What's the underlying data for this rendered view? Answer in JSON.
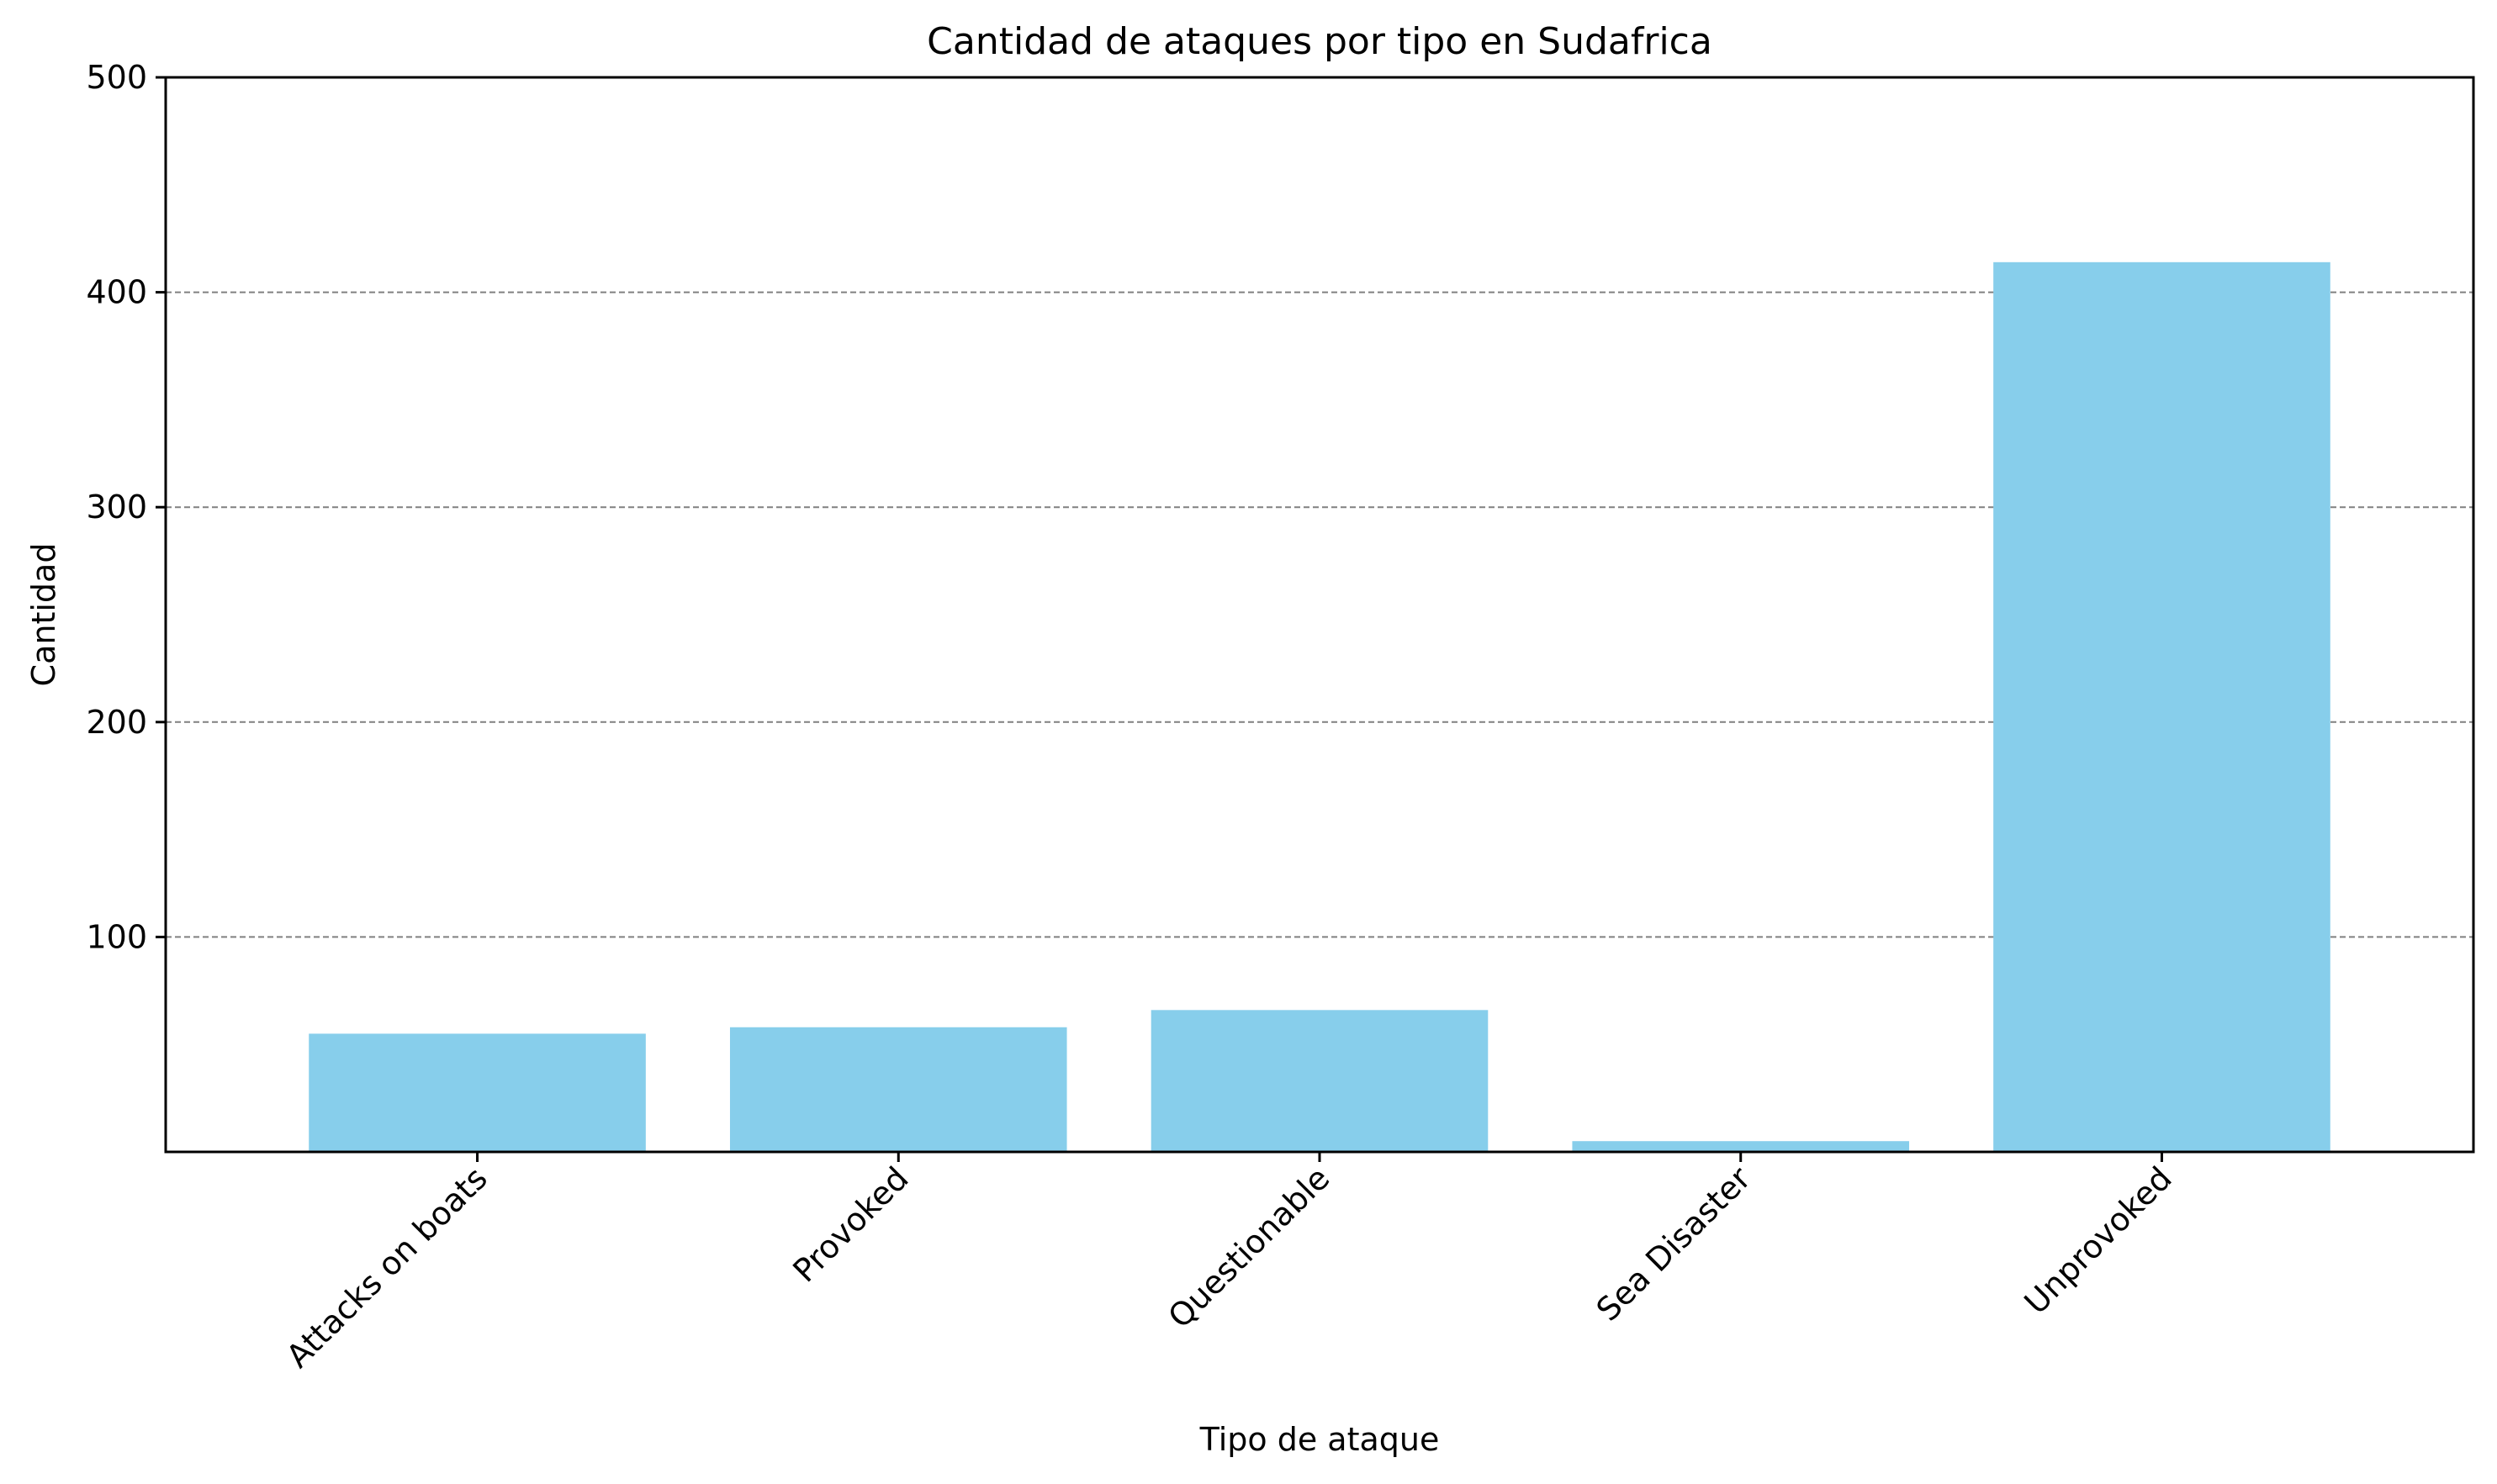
{
  "chart_data": {
    "type": "bar",
    "title": "Cantidad de ataques por tipo en Sudafrica",
    "xlabel": "Tipo de ataque",
    "ylabel": "Cantidad",
    "categories": [
      "Attacks on boats",
      "Provoked",
      "Questionable",
      "Sea Disaster",
      "Unprovoked"
    ],
    "values": [
      55,
      58,
      66,
      5,
      414
    ],
    "ylim": [
      0,
      500
    ],
    "yticks": [
      100,
      200,
      300,
      400,
      500
    ],
    "grid": "y-dashed",
    "bar_color": "#87CEEB"
  }
}
